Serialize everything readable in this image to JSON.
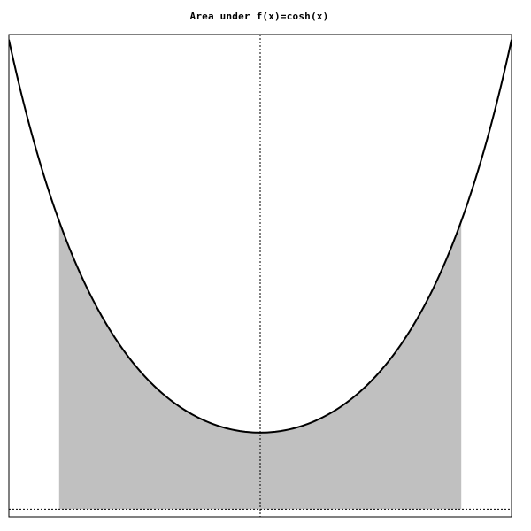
{
  "chart_data": {
    "type": "area",
    "title": "Area under f(x)=cosh(x)",
    "function": "cosh(x)",
    "xlabel": "",
    "ylabel": "",
    "xlim": [
      -2.5,
      2.5
    ],
    "ylim": [
      -0.1,
      6.2
    ],
    "shade_range": [
      -2,
      2
    ],
    "grid": false,
    "x_axis_line": "dotted",
    "y_axis_line": "dotted",
    "curve_samples": 201,
    "colors": {
      "curve": "#000000",
      "fill": "#c0c0c0",
      "axes": "#000000",
      "frame": "#000000",
      "background": "#ffffff"
    }
  }
}
